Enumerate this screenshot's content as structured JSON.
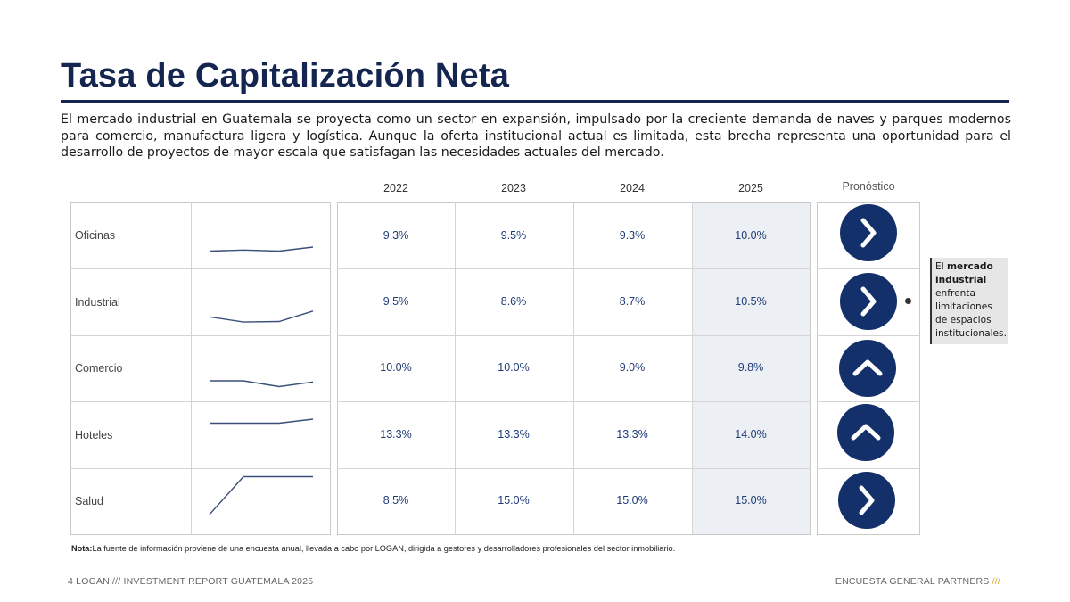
{
  "title": "Tasa de Capitalización Neta",
  "intro": "El mercado industrial en Guatemala se proyecta como un sector en expansión, impulsado por la creciente demanda de naves y parques modernos para comercio, manufactura ligera y logística. Aunque la oferta institucional actual es limitada, esta brecha representa una oportunidad para el desarrollo de proyectos de mayor escala que satisfagan las necesidades actuales del mercado.",
  "table": {
    "years": [
      "2022",
      "2023",
      "2024",
      "2025"
    ],
    "forecast_label": "Pronóstico",
    "rows": [
      {
        "label": "Oficinas",
        "values": [
          "9.3%",
          "9.5%",
          "9.3%",
          "10.0%"
        ],
        "trend": [
          9.3,
          9.5,
          9.3,
          10.0
        ],
        "forecast_icon": "chevron-right-icon"
      },
      {
        "label": "Industrial",
        "values": [
          "9.5%",
          "8.6%",
          "8.7%",
          "10.5%"
        ],
        "trend": [
          9.5,
          8.6,
          8.7,
          10.5
        ],
        "forecast_icon": "chevron-right-icon"
      },
      {
        "label": "Comercio",
        "values": [
          "10.0%",
          "10.0%",
          "9.0%",
          "9.8%"
        ],
        "trend": [
          10.0,
          10.0,
          9.0,
          9.8
        ],
        "forecast_icon": "chevron-up-icon"
      },
      {
        "label": "Hoteles",
        "values": [
          "13.3%",
          "13.3%",
          "13.3%",
          "14.0%"
        ],
        "trend": [
          13.3,
          13.3,
          13.3,
          14.0
        ],
        "forecast_icon": "chevron-up-icon"
      },
      {
        "label": "Salud",
        "values": [
          "8.5%",
          "15.0%",
          "15.0%",
          "15.0%"
        ],
        "trend": [
          8.5,
          15.0,
          15.0,
          15.0
        ],
        "forecast_icon": "chevron-right-icon"
      }
    ],
    "highlight_color": "#eceff3",
    "circle_color": "#14306a",
    "sparkline_color": "#3b4f7a"
  },
  "callout": {
    "prefix": "El",
    "bold": "mercado industrial",
    "suffix": "enfrenta limitaciones de espacios institucionales."
  },
  "note": {
    "label": "Nota:",
    "text": "La fuente de información proviene de una encuesta anual, llevada a cabo por LOGAN, dirigida a gestores y desarrolladores profesionales del sector inmobiliario."
  },
  "footer": {
    "left": "4  LOGAN  ///  INVESTMENT REPORT GUATEMALA 2025",
    "right_text": "ENCUESTA GENERAL PARTNERS",
    "right_slashes": "///",
    "accent_color": "#e2a325"
  }
}
